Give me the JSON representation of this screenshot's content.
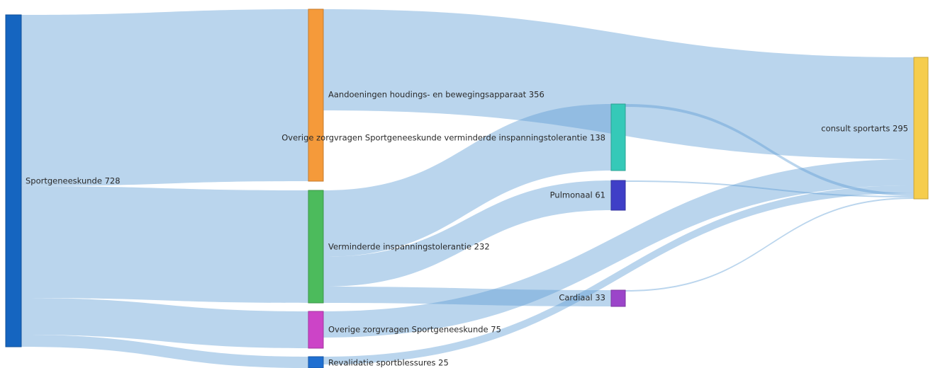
{
  "nodes": [
    {
      "id": "sportgeneeskunde",
      "label": "Sportgeneeskunde 728",
      "color": "#1565c0"
    },
    {
      "id": "aandoeningen",
      "label": "Aandoeningen houdings- en bewegingsapparaat 356",
      "color": "#f59a3a"
    },
    {
      "id": "verminderde",
      "label": "Verminderde inspanningstolerantie 232",
      "color": "#4cbb5c"
    },
    {
      "id": "overige75",
      "label": "Overige zorgvragen Sportgeneeskunde 75",
      "color": "#cc44c7"
    },
    {
      "id": "revalidatie",
      "label": "Revalidatie sportblessures 25",
      "color": "#1f6fd1"
    },
    {
      "id": "overige138",
      "label": "Overige zorgvragen Sportgeneeskunde verminderde inspanningstolerantie 138",
      "color": "#35c9b8"
    },
    {
      "id": "pulmonaal",
      "label": "Pulmonaal 61",
      "color": "#3f3fc7"
    },
    {
      "id": "cardiaal",
      "label": "Cardiaal 33",
      "color": "#9b45c9"
    },
    {
      "id": "consult",
      "label": "consult sportarts 295",
      "color": "#f6cd4c"
    }
  ],
  "links": [
    {
      "source": "sportgeneeskunde",
      "target": "aandoeningen"
    },
    {
      "source": "sportgeneeskunde",
      "target": "verminderde"
    },
    {
      "source": "sportgeneeskunde",
      "target": "overige75"
    },
    {
      "source": "sportgeneeskunde",
      "target": "revalidatie"
    },
    {
      "source": "aandoeningen",
      "target": "consult"
    },
    {
      "source": "verminderde",
      "target": "overige138"
    },
    {
      "source": "verminderde",
      "target": "pulmonaal"
    },
    {
      "source": "verminderde",
      "target": "cardiaal"
    },
    {
      "source": "overige75",
      "target": "consult"
    },
    {
      "source": "revalidatie",
      "target": "consult"
    },
    {
      "source": "overige138",
      "target": "consult"
    },
    {
      "source": "pulmonaal",
      "target": "consult"
    },
    {
      "source": "cardiaal",
      "target": "consult"
    }
  ]
}
